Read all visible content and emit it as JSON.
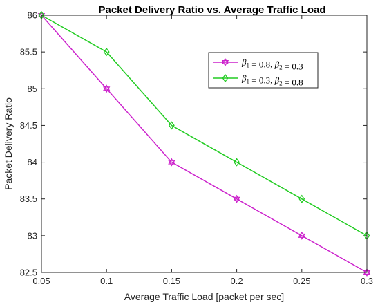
{
  "chart_data": {
    "type": "line",
    "title": "Packet Delivery Ratio vs. Average Traffic Load",
    "xlabel": "Average Traffic Load [packet per sec]",
    "ylabel": "Packet Delivery Ratio",
    "xlim": [
      0.05,
      0.3
    ],
    "ylim": [
      82.5,
      86
    ],
    "x": [
      0.05,
      0.1,
      0.15,
      0.2,
      0.25,
      0.3
    ],
    "x_ticks": [
      "0.05",
      "0.1",
      "0.15",
      "0.2",
      "0.25",
      "0.3"
    ],
    "y_ticks": [
      "82.5",
      "83",
      "83.5",
      "84",
      "84.5",
      "85",
      "85.5",
      "86"
    ],
    "grid": false,
    "legend_position": "top-right",
    "series": [
      {
        "name": "β1 = 0.8, β2 = 0.3",
        "label_parts": [
          {
            "text": "β",
            "style": "italic"
          },
          {
            "text": "1",
            "style": "sub"
          },
          {
            "text": " = 0.8, ",
            "style": "normal"
          },
          {
            "text": "β",
            "style": "italic"
          },
          {
            "text": "2",
            "style": "sub"
          },
          {
            "text": " = 0.3",
            "style": "normal"
          }
        ],
        "color": "#CC22CC",
        "marker": "hexagram",
        "values": [
          86,
          85,
          84,
          83.5,
          83,
          82.5
        ]
      },
      {
        "name": "β1 = 0.3, β2 = 0.8",
        "label_parts": [
          {
            "text": "β",
            "style": "italic"
          },
          {
            "text": "1",
            "style": "sub"
          },
          {
            "text": " = 0.3, ",
            "style": "normal"
          },
          {
            "text": "β",
            "style": "italic"
          },
          {
            "text": "2",
            "style": "sub"
          },
          {
            "text": " = 0.8",
            "style": "normal"
          }
        ],
        "color": "#22CC22",
        "marker": "diamond",
        "values": [
          86,
          85.5,
          84.5,
          84,
          83.5,
          83
        ]
      }
    ]
  }
}
